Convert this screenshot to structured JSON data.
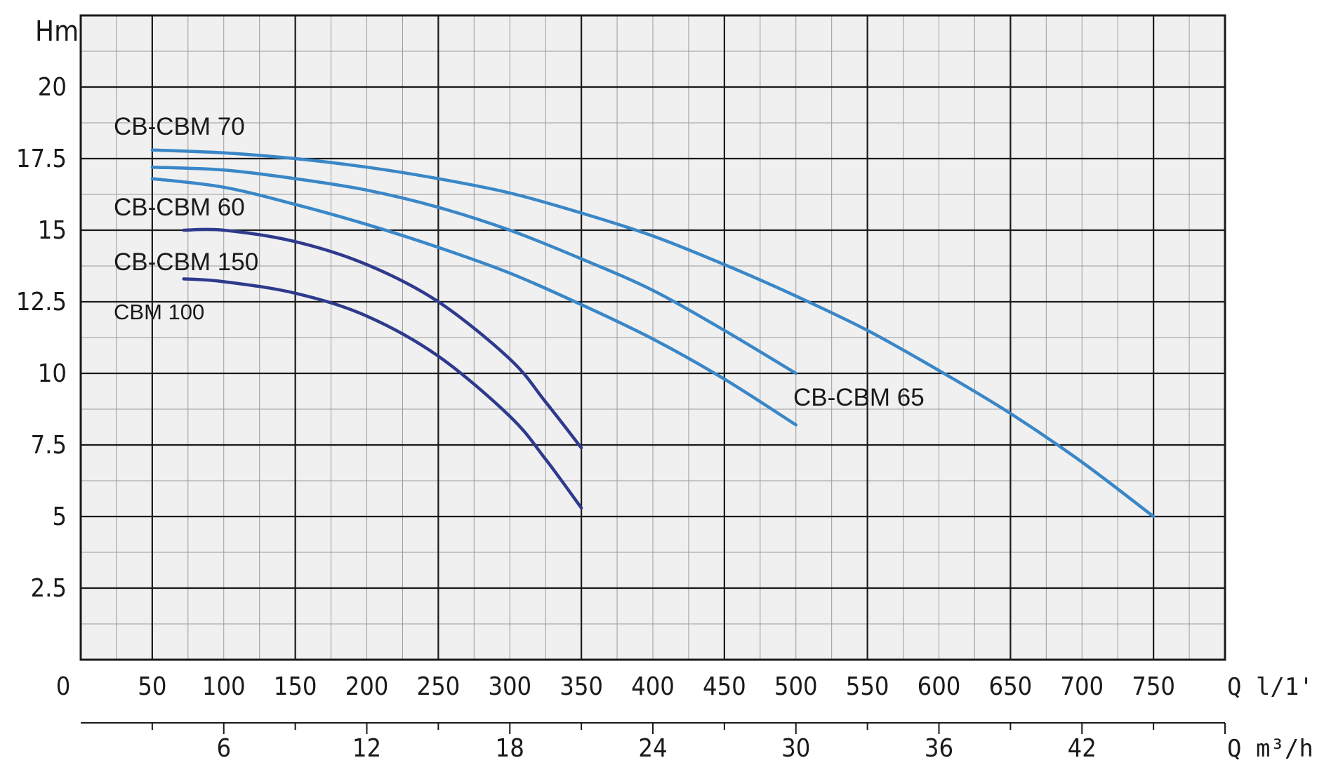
{
  "chart_data": {
    "type": "line",
    "title": "",
    "ylabel": "Hm",
    "xlabel": "Q l/1'",
    "x2label": "Q m³/h",
    "xlim": [
      0,
      800
    ],
    "ylim": [
      0,
      22.5
    ],
    "grid": true,
    "yticks": [
      {
        "value": 2.5,
        "label": "2.5"
      },
      {
        "value": 5,
        "label": "5"
      },
      {
        "value": 7.5,
        "label": "7.5"
      },
      {
        "value": 10,
        "label": "10"
      },
      {
        "value": 12.5,
        "label": "12.5"
      },
      {
        "value": 15,
        "label": "15"
      },
      {
        "value": 17.5,
        "label": "17.5"
      },
      {
        "value": 20,
        "label": "20"
      }
    ],
    "xticks": [
      {
        "value": 0,
        "label": "0"
      },
      {
        "value": 50,
        "label": "50"
      },
      {
        "value": 100,
        "label": "100"
      },
      {
        "value": 150,
        "label": "150"
      },
      {
        "value": 200,
        "label": "200"
      },
      {
        "value": 250,
        "label": "250"
      },
      {
        "value": 300,
        "label": "300"
      },
      {
        "value": 350,
        "label": "350"
      },
      {
        "value": 400,
        "label": "400"
      },
      {
        "value": 450,
        "label": "450"
      },
      {
        "value": 500,
        "label": "500"
      },
      {
        "value": 550,
        "label": "550"
      },
      {
        "value": 600,
        "label": "600"
      },
      {
        "value": 650,
        "label": "650"
      },
      {
        "value": 700,
        "label": "700"
      },
      {
        "value": 750,
        "label": "750"
      }
    ],
    "x2ticks": [
      {
        "value": 6,
        "label": "6"
      },
      {
        "value": 12,
        "label": "12"
      },
      {
        "value": 18,
        "label": "18"
      },
      {
        "value": 24,
        "label": "24"
      },
      {
        "value": 30,
        "label": "30"
      },
      {
        "value": 36,
        "label": "36"
      },
      {
        "value": 42,
        "label": "42"
      }
    ],
    "series": [
      {
        "name": "CB-CBM 70",
        "color": "#3a87c8",
        "points": [
          [
            50,
            17.8
          ],
          [
            100,
            17.7
          ],
          [
            150,
            17.5
          ],
          [
            200,
            17.2
          ],
          [
            250,
            16.8
          ],
          [
            300,
            16.3
          ],
          [
            350,
            15.6
          ],
          [
            400,
            14.8
          ],
          [
            450,
            13.8
          ],
          [
            500,
            12.7
          ],
          [
            550,
            11.5
          ],
          [
            600,
            10.1
          ],
          [
            650,
            8.6
          ],
          [
            700,
            6.9
          ],
          [
            750,
            5.0
          ]
        ]
      },
      {
        "name": "CB-CBM 65",
        "color": "#3a87c8",
        "points": [
          [
            50,
            17.2
          ],
          [
            100,
            17.1
          ],
          [
            150,
            16.8
          ],
          [
            200,
            16.4
          ],
          [
            250,
            15.8
          ],
          [
            300,
            15.0
          ],
          [
            350,
            14.0
          ],
          [
            400,
            12.9
          ],
          [
            450,
            11.5
          ],
          [
            500,
            10.0
          ]
        ]
      },
      {
        "name": "CB-CBM 60",
        "color": "#3a87c8",
        "points": [
          [
            50,
            16.8
          ],
          [
            100,
            16.5
          ],
          [
            150,
            15.9
          ],
          [
            200,
            15.2
          ],
          [
            250,
            14.4
          ],
          [
            300,
            13.5
          ],
          [
            350,
            12.4
          ],
          [
            400,
            11.2
          ],
          [
            450,
            9.8
          ],
          [
            500,
            8.2
          ]
        ]
      },
      {
        "name": "CB-CBM 150",
        "color": "#2e3a8c",
        "points": [
          [
            72,
            15.0
          ],
          [
            100,
            15.0
          ],
          [
            150,
            14.6
          ],
          [
            200,
            13.8
          ],
          [
            250,
            12.5
          ],
          [
            300,
            10.5
          ],
          [
            325,
            9.0
          ],
          [
            350,
            7.4
          ]
        ]
      },
      {
        "name": "CBM 100",
        "color": "#2e3a8c",
        "points": [
          [
            72,
            13.3
          ],
          [
            100,
            13.2
          ],
          [
            150,
            12.8
          ],
          [
            200,
            12.0
          ],
          [
            250,
            10.6
          ],
          [
            300,
            8.5
          ],
          [
            325,
            7.0
          ],
          [
            350,
            5.3
          ]
        ]
      }
    ]
  }
}
